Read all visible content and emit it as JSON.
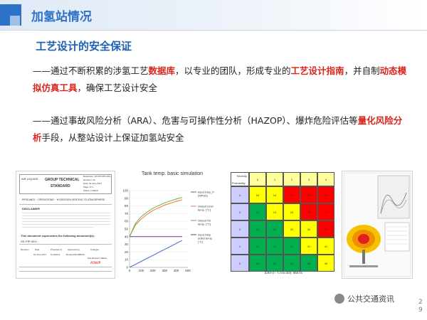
{
  "header": {
    "title": "加氢站情况"
  },
  "section": {
    "title": "工艺设计的安全保证"
  },
  "paragraph1": {
    "p1": "——通过不断积累的涉氢工艺",
    "h1": "数据库",
    "p2": "，以专业的团队，形成专业的",
    "h2": "工艺设计指南",
    "p3": "，并自制",
    "h3": "动态模拟仿真工具",
    "p4": "，确保工艺设计安全"
  },
  "paragraph2": {
    "p1": "——通过事故风险分析（ARA）、危害与可操作性分析（HAZOP）、爆炸危险评估等",
    "h1": "量化风险分析",
    "p2": "手段，从整站设计上保证加氢站安全"
  },
  "doc_thumb": {
    "company": "AIR LIQUIDE",
    "group_line1": "GROUP TECHNICAL",
    "group_line2": "STANDARD",
    "ref": "Reference: GT-PIP-PIP-001+",
    "rev": "Revision: 0a",
    "date": "Date: 01 June 2017",
    "page": "Page: 1/7+",
    "status": "Status: In Effect",
    "pipeline": "PIPELINES ~ OPERATIONS ~ HYDROGEN VENTING TO ATMOSPHERE",
    "disclaimer": "DISCLAIMER",
    "supersede": "This document supersedes the following document(s):",
    "doc_id": "GE-PIP-001+",
    "col_revision": "Revision",
    "col_date": "Date",
    "col_prepared": "Prepared by",
    "col_approved": "Approved by",
    "col_changes": "Changes",
    "row_date": "01 June 2017",
    "row_prep": "Cortella N",
    "row_appr": "Renaud DIUSBIOH",
    "row_change": "See Revision Tables",
    "row_link": "AGNUP"
  },
  "chart_data": {
    "type": "line",
    "title": "Tank temp. basic simulation",
    "x": [
      0,
      100,
      200,
      300,
      400,
      500
    ],
    "xlim": [
      0,
      500
    ],
    "ylim": [
      0,
      100
    ],
    "yticks": [
      0,
      10,
      20,
      30,
      40,
      50,
      60,
      70,
      80,
      90,
      100
    ],
    "xticks": [
      0,
      100,
      200,
      300,
      400,
      500
    ],
    "series": [
      {
        "name": "Input Disp_P (MPaG)",
        "color": "#4472c4",
        "x": [
          0,
          450
        ],
        "y": [
          0,
          35
        ]
      },
      {
        "name": "Output Liner temp. (°C)",
        "color": "#ed7d31",
        "x": [
          0,
          50,
          100,
          150,
          200,
          300,
          400,
          450
        ],
        "y": [
          40,
          55,
          63,
          69,
          74,
          81,
          86,
          88
        ]
      },
      {
        "name": "Output H2 temp. (°C)",
        "color": "#70ad47",
        "x": [
          0,
          50,
          100,
          150,
          200,
          300,
          400,
          450
        ],
        "y": [
          40,
          57,
          66,
          72,
          77,
          84,
          89,
          91
        ]
      },
      {
        "name": "Input Disp outlet temp. (°C)",
        "color": "#7030a0",
        "x": [
          0,
          450
        ],
        "y": [
          40,
          40
        ]
      }
    ]
  },
  "matrix": {
    "severity_label": "Severity",
    "probability_label": "Probability",
    "severity_levels": [
      "0",
      "1",
      "2",
      "3",
      "4"
    ],
    "caption": "Table 6 : Criticality Matrix",
    "rows": [
      {
        "prob": "4",
        "cells": [
          {
            "v": "04",
            "c": "#ffff00"
          },
          {
            "v": "14",
            "c": "#ffff00"
          },
          {
            "v": "24",
            "c": "#ff0000"
          },
          {
            "v": "34",
            "c": "#ff0000"
          },
          {
            "v": "44",
            "c": "#ff0000"
          }
        ]
      },
      {
        "prob": "3",
        "cells": [
          {
            "v": "03",
            "c": "#00b050"
          },
          {
            "v": "13",
            "c": "#ffff00"
          },
          {
            "v": "23",
            "c": "#ffff00"
          },
          {
            "v": "33",
            "c": "#ff0000"
          },
          {
            "v": "43",
            "c": "#ff0000"
          }
        ]
      },
      {
        "prob": "2",
        "cells": [
          {
            "v": "02",
            "c": "#00b050"
          },
          {
            "v": "12",
            "c": "#00b050"
          },
          {
            "v": "22",
            "c": "#ffff00"
          },
          {
            "v": "32",
            "c": "#ffff00"
          },
          {
            "v": "42",
            "c": "#ff0000"
          }
        ]
      },
      {
        "prob": "1",
        "cells": [
          {
            "v": "01",
            "c": "#00b050"
          },
          {
            "v": "11",
            "c": "#00b050"
          },
          {
            "v": "21",
            "c": "#00b050"
          },
          {
            "v": "31",
            "c": "#ffff00"
          },
          {
            "v": "41",
            "c": "#ffff00"
          }
        ]
      },
      {
        "prob": "0",
        "cells": [
          {
            "v": "00",
            "c": "#00b050"
          },
          {
            "v": "10",
            "c": "#00b050"
          },
          {
            "v": "20",
            "c": "#00b050"
          },
          {
            "v": "30",
            "c": "#00b050"
          },
          {
            "v": "40",
            "c": "#ffff00"
          }
        ]
      }
    ]
  },
  "watermark": {
    "text": "公共交通资讯"
  },
  "page_number": {
    "d1": "2",
    "d2": "9"
  },
  "colors": {
    "accent": "#2e72c7",
    "highlight": "#d9251c"
  }
}
